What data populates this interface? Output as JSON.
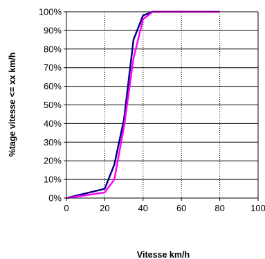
{
  "chart_data": {
    "type": "line",
    "title": "",
    "xlabel": "Vitesse km/h",
    "ylabel": "%tage vitesse <= xx km/h",
    "xlim": [
      0,
      100
    ],
    "ylim": [
      0,
      100
    ],
    "x_ticks": [
      0,
      20,
      40,
      60,
      80,
      100
    ],
    "y_ticks": [
      0,
      10,
      20,
      30,
      40,
      50,
      60,
      70,
      80,
      90,
      100
    ],
    "x_tick_labels": [
      "0",
      "20",
      "40",
      "60",
      "80",
      "100"
    ],
    "y_tick_labels": [
      "0%",
      "10%",
      "20%",
      "30%",
      "40%",
      "50%",
      "60%",
      "70%",
      "80%",
      "90%",
      "100%"
    ],
    "grid": {
      "horizontal": "solid",
      "vertical": "dotted"
    },
    "legend": "none",
    "series": [
      {
        "color": "#000080",
        "points": [
          [
            0,
            0
          ],
          [
            20,
            5
          ],
          [
            25,
            18
          ],
          [
            30,
            42
          ],
          [
            35,
            85
          ],
          [
            40,
            98
          ],
          [
            45,
            100
          ],
          [
            50,
            100
          ],
          [
            60,
            100
          ],
          [
            70,
            100
          ],
          [
            80,
            100
          ]
        ]
      },
      {
        "color": "#ff00ff",
        "points": [
          [
            0,
            0
          ],
          [
            20,
            3
          ],
          [
            25,
            10
          ],
          [
            30,
            38
          ],
          [
            35,
            75
          ],
          [
            40,
            96
          ],
          [
            45,
            100
          ],
          [
            50,
            100
          ],
          [
            60,
            100
          ],
          [
            70,
            100
          ],
          [
            80,
            100
          ]
        ]
      }
    ]
  }
}
